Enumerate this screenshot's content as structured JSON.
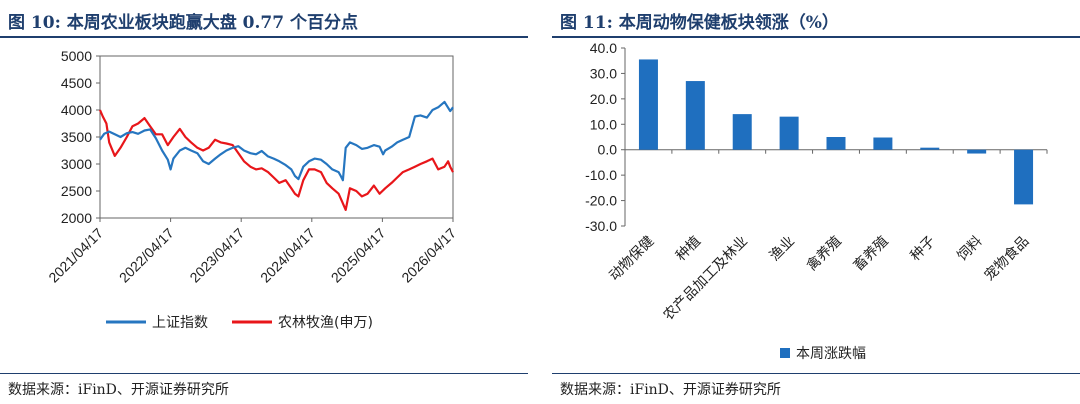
{
  "left": {
    "title": "图 10:  本周农业板块跑赢大盘 0.77 个百分点",
    "source": "数据来源：iFinD、开源证券研究所"
  },
  "right": {
    "title": "图 11:  本周动物保健板块领涨（%）",
    "source": "数据来源：iFinD、开源证券研究所"
  },
  "colors": {
    "title": "#1f3f6e",
    "series_blue": "#2676c0",
    "series_red": "#e8161a",
    "bar": "#1f6fbf"
  },
  "chart_data": [
    {
      "type": "line",
      "title": "本周农业板块跑赢大盘 0.77 个百分点",
      "ylim": [
        2000,
        5000
      ],
      "yticks": [
        "2000",
        "2500",
        "3000",
        "3500",
        "4000",
        "4500",
        "5000"
      ],
      "x_range": [
        2021.29,
        2026.29
      ],
      "xticks": [
        "2021/04/17",
        "2022/04/17",
        "2023/04/17",
        "2024/04/17",
        "2025/04/17",
        "2026/04/17"
      ],
      "legend_position": "bottom",
      "series": [
        {
          "name": "上证指数",
          "color": "#2676c0",
          "x": [
            2021.29,
            2021.35,
            2021.42,
            2021.5,
            2021.58,
            2021.67,
            2021.75,
            2021.83,
            2021.92,
            2022.0,
            2022.08,
            2022.17,
            2022.25,
            2022.29,
            2022.33,
            2022.42,
            2022.5,
            2022.58,
            2022.67,
            2022.75,
            2022.83,
            2022.92,
            2023.0,
            2023.08,
            2023.17,
            2023.25,
            2023.33,
            2023.42,
            2023.5,
            2023.58,
            2023.67,
            2023.75,
            2023.83,
            2023.92,
            2024.0,
            2024.05,
            2024.1,
            2024.17,
            2024.25,
            2024.33,
            2024.42,
            2024.5,
            2024.58,
            2024.67,
            2024.7,
            2024.73,
            2024.77,
            2024.83,
            2024.92,
            2025.0,
            2025.08,
            2025.17,
            2025.25,
            2025.3,
            2025.33,
            2025.42,
            2025.5,
            2025.58,
            2025.67,
            2025.75,
            2025.83,
            2025.92,
            2026.0,
            2026.08,
            2026.17,
            2026.25,
            2026.29
          ],
          "y": [
            3450,
            3560,
            3600,
            3550,
            3500,
            3570,
            3590,
            3560,
            3620,
            3640,
            3480,
            3250,
            3080,
            2900,
            3100,
            3250,
            3300,
            3250,
            3200,
            3050,
            3000,
            3100,
            3180,
            3250,
            3300,
            3330,
            3250,
            3200,
            3180,
            3240,
            3140,
            3100,
            3050,
            2980,
            2900,
            2780,
            2720,
            2950,
            3050,
            3100,
            3080,
            3000,
            2900,
            2850,
            2780,
            2700,
            3300,
            3400,
            3350,
            3280,
            3300,
            3350,
            3320,
            3180,
            3250,
            3320,
            3400,
            3450,
            3500,
            3880,
            3900,
            3860,
            4000,
            4050,
            4150,
            3980,
            4050
          ]
        },
        {
          "name": "农林牧渔(申万)",
          "color": "#e8161a",
          "x": [
            2021.29,
            2021.33,
            2021.38,
            2021.42,
            2021.5,
            2021.58,
            2021.67,
            2021.75,
            2021.83,
            2021.92,
            2022.0,
            2022.08,
            2022.17,
            2022.25,
            2022.33,
            2022.42,
            2022.5,
            2022.58,
            2022.67,
            2022.75,
            2022.83,
            2022.92,
            2023.0,
            2023.08,
            2023.17,
            2023.25,
            2023.33,
            2023.42,
            2023.5,
            2023.58,
            2023.67,
            2023.75,
            2023.83,
            2023.92,
            2024.0,
            2024.05,
            2024.1,
            2024.17,
            2024.25,
            2024.33,
            2024.42,
            2024.5,
            2024.58,
            2024.67,
            2024.72,
            2024.77,
            2024.83,
            2024.92,
            2025.0,
            2025.08,
            2025.17,
            2025.25,
            2025.33,
            2025.42,
            2025.5,
            2025.58,
            2025.67,
            2025.75,
            2025.83,
            2025.92,
            2026.0,
            2026.08,
            2026.17,
            2026.22,
            2026.25,
            2026.29
          ],
          "y": [
            4000,
            3880,
            3750,
            3400,
            3150,
            3300,
            3500,
            3700,
            3750,
            3850,
            3700,
            3550,
            3550,
            3350,
            3500,
            3650,
            3500,
            3400,
            3300,
            3250,
            3300,
            3450,
            3400,
            3380,
            3350,
            3200,
            3050,
            2950,
            2900,
            2920,
            2850,
            2750,
            2650,
            2700,
            2550,
            2450,
            2400,
            2700,
            2900,
            2900,
            2850,
            2650,
            2550,
            2450,
            2300,
            2150,
            2550,
            2500,
            2400,
            2450,
            2600,
            2450,
            2550,
            2650,
            2750,
            2850,
            2900,
            2950,
            3000,
            3050,
            3100,
            2900,
            2950,
            3050,
            2950,
            2850
          ]
        }
      ]
    },
    {
      "type": "bar",
      "title": "本周动物保健板块领涨（%）",
      "ylim": [
        -30,
        40
      ],
      "yticks": [
        "-30.0",
        "-20.0",
        "-10.0",
        "0.0",
        "10.0",
        "20.0",
        "30.0",
        "40.0"
      ],
      "categories": [
        "动物保健",
        "种植",
        "农产品加工及林业",
        "渔业",
        "禽养殖",
        "畜养殖",
        "种子",
        "饲料",
        "宠物食品"
      ],
      "series": [
        {
          "name": "本周涨跌幅",
          "values": [
            35.5,
            27.0,
            14.0,
            13.0,
            5.0,
            4.8,
            0.8,
            -1.5,
            -21.5
          ]
        }
      ],
      "legend_position": "bottom"
    }
  ]
}
